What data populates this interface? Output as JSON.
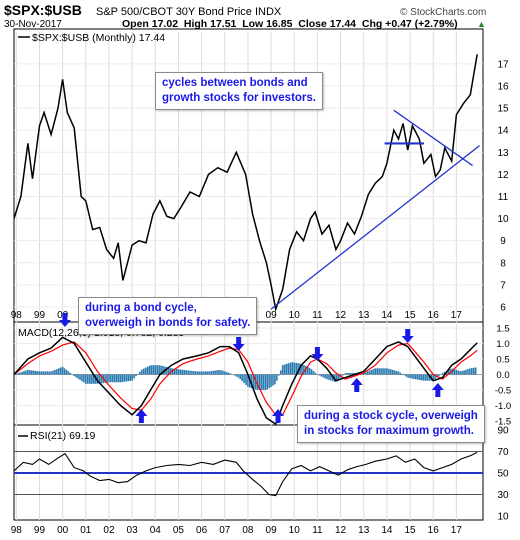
{
  "header": {
    "symbol": "$SPX:$USB",
    "description": "S&P 500/CBOT 30Y Bond Price INDX",
    "date": "30-Nov-2017",
    "ohlc": "Open 17.02  High 17.51  Low 16.85  Close 17.44  Chg +0.47 (+2.79%)",
    "watermark": "© StockCharts.com",
    "change_arrow": "▲"
  },
  "chart_data": [
    {
      "type": "line",
      "title": "$SPX:$USB (Monthly) 17.44",
      "x_ticks": [
        "98",
        "99",
        "00",
        "01",
        "02",
        "03",
        "04",
        "05",
        "06",
        "07",
        "08",
        "09",
        "10",
        "11",
        "12",
        "13",
        "14",
        "15",
        "16",
        "17"
      ],
      "x_range": [
        1997.9,
        2018.15
      ],
      "ylim": [
        5.5,
        17.9
      ],
      "y_ticks": [
        6,
        7,
        8,
        9,
        10,
        11,
        12,
        13,
        14,
        15,
        16,
        17
      ],
      "series": [
        {
          "x": [
            1997.9,
            1998.2,
            1998.5,
            1998.7,
            1999.0,
            1999.2,
            1999.5,
            1999.8,
            2000.0,
            2000.2,
            2000.5,
            2000.8,
            2001.0,
            2001.3,
            2001.6,
            2001.9,
            2002.2,
            2002.4,
            2002.6,
            2002.8,
            2003.0,
            2003.3,
            2003.6,
            2003.9,
            2004.2,
            2004.5,
            2004.8,
            2005.1,
            2005.5,
            2005.9,
            2006.3,
            2006.7,
            2007.1,
            2007.5,
            2007.9,
            2008.2,
            2008.5,
            2008.8,
            2009.0,
            2009.2,
            2009.5,
            2009.8,
            2010.1,
            2010.4,
            2010.7,
            2010.9,
            2011.2,
            2011.5,
            2011.8,
            2012.0,
            2012.3,
            2012.6,
            2012.9,
            2013.2,
            2013.5,
            2013.8,
            2014.0,
            2014.3,
            2014.5,
            2014.7,
            2014.9,
            2015.1,
            2015.4,
            2015.6,
            2015.9,
            2016.1,
            2016.3,
            2016.5,
            2016.8,
            2017.0,
            2017.3,
            2017.6,
            2017.9
          ],
          "values": [
            10.0,
            11.0,
            13.4,
            11.8,
            14.2,
            14.8,
            13.8,
            15.0,
            16.3,
            14.8,
            14.1,
            11.0,
            10.8,
            9.5,
            9.6,
            8.6,
            8.2,
            8.9,
            7.2,
            8.0,
            8.8,
            9.0,
            8.9,
            10.2,
            10.8,
            10.1,
            10.0,
            10.5,
            11.2,
            11.0,
            12.0,
            12.3,
            12.1,
            13.0,
            12.0,
            10.2,
            9.0,
            8.0,
            7.0,
            5.9,
            6.8,
            8.6,
            9.4,
            9.0,
            10.0,
            10.3,
            9.3,
            9.7,
            8.6,
            9.0,
            9.8,
            9.3,
            10.1,
            11.1,
            11.6,
            11.9,
            12.5,
            14.0,
            13.6,
            14.3,
            13.1,
            14.2,
            13.6,
            12.5,
            12.9,
            11.9,
            12.2,
            13.2,
            12.6,
            14.7,
            15.2,
            15.6,
            17.44
          ]
        }
      ],
      "annotations": [
        {
          "text": "cycles between bonds and\ngrowth stocks for investors."
        },
        {
          "text": "during a bond cycle,\noverweigh in bonds for safety."
        }
      ]
    },
    {
      "type": "line",
      "title": "MACD(12,26,9) 1.018, 0.782, 0.235",
      "ylim": [
        -1.5,
        1.5
      ],
      "y_ticks": [
        -1.5,
        -1.0,
        -0.5,
        0.0,
        0.5,
        1.0,
        1.5
      ],
      "series": [
        {
          "name": "MACD",
          "color": "#000000",
          "x": [
            1997.9,
            1998.5,
            1999.0,
            1999.5,
            2000.0,
            2000.5,
            2001.0,
            2001.5,
            2002.0,
            2002.5,
            2003.0,
            2003.4,
            2003.8,
            2004.2,
            2004.7,
            2005.2,
            2005.8,
            2006.3,
            2006.8,
            2007.2,
            2007.6,
            2008.0,
            2008.4,
            2008.8,
            2009.2,
            2009.5,
            2009.9,
            2010.3,
            2010.7,
            2011.0,
            2011.4,
            2011.8,
            2012.2,
            2012.6,
            2013.0,
            2013.5,
            2014.0,
            2014.5,
            2014.9,
            2015.2,
            2015.6,
            2016.0,
            2016.4,
            2016.8,
            2017.2,
            2017.6,
            2017.9
          ],
          "values": [
            0.0,
            0.5,
            0.7,
            0.85,
            1.2,
            1.0,
            0.4,
            -0.2,
            -0.6,
            -1.0,
            -1.3,
            -1.0,
            -0.5,
            0.0,
            0.3,
            0.5,
            0.6,
            0.7,
            0.9,
            0.9,
            0.7,
            0.0,
            -0.8,
            -1.4,
            -1.6,
            -1.0,
            -0.3,
            0.3,
            0.6,
            0.5,
            0.2,
            -0.2,
            -0.1,
            0.0,
            0.1,
            0.5,
            0.9,
            1.05,
            0.9,
            0.6,
            0.2,
            -0.2,
            -0.1,
            0.3,
            0.5,
            0.8,
            1.018
          ]
        },
        {
          "name": "Signal",
          "color": "#ff0000",
          "x": [
            1997.9,
            1998.5,
            1999.0,
            1999.5,
            2000.0,
            2000.5,
            2001.0,
            2001.5,
            2002.0,
            2002.5,
            2003.0,
            2003.4,
            2003.8,
            2004.2,
            2004.7,
            2005.2,
            2005.8,
            2006.3,
            2006.8,
            2007.2,
            2007.6,
            2008.0,
            2008.4,
            2008.8,
            2009.2,
            2009.5,
            2009.9,
            2010.3,
            2010.7,
            2011.0,
            2011.4,
            2011.8,
            2012.2,
            2012.6,
            2013.0,
            2013.5,
            2014.0,
            2014.5,
            2014.9,
            2015.2,
            2015.6,
            2016.0,
            2016.4,
            2016.8,
            2017.2,
            2017.6,
            2017.9
          ],
          "values": [
            0.0,
            0.35,
            0.6,
            0.75,
            0.95,
            1.05,
            0.7,
            0.1,
            -0.35,
            -0.75,
            -1.1,
            -1.15,
            -0.8,
            -0.3,
            0.1,
            0.35,
            0.5,
            0.6,
            0.75,
            0.85,
            0.8,
            0.4,
            -0.3,
            -0.9,
            -1.3,
            -1.3,
            -0.7,
            -0.05,
            0.4,
            0.5,
            0.35,
            0.05,
            -0.15,
            -0.05,
            0.05,
            0.3,
            0.7,
            0.95,
            1.0,
            0.75,
            0.4,
            0.0,
            -0.15,
            0.1,
            0.4,
            0.6,
            0.782
          ]
        },
        {
          "name": "Histogram",
          "color": "#2a7ab0",
          "type": "bar",
          "x": [
            1997.9,
            1998.5,
            1999.0,
            1999.5,
            2000.0,
            2000.5,
            2001.0,
            2001.5,
            2002.0,
            2002.5,
            2003.0,
            2003.4,
            2003.8,
            2004.2,
            2004.7,
            2005.2,
            2005.8,
            2006.3,
            2006.8,
            2007.2,
            2007.6,
            2008.0,
            2008.4,
            2008.8,
            2009.2,
            2009.5,
            2009.9,
            2010.3,
            2010.7,
            2011.0,
            2011.4,
            2011.8,
            2012.2,
            2012.6,
            2013.0,
            2013.5,
            2014.0,
            2014.5,
            2014.9,
            2015.2,
            2015.6,
            2016.0,
            2016.4,
            2016.8,
            2017.2,
            2017.6,
            2017.9
          ],
          "values": [
            0.0,
            0.15,
            0.1,
            0.1,
            0.25,
            -0.05,
            -0.3,
            -0.3,
            -0.25,
            -0.25,
            -0.2,
            0.15,
            0.3,
            0.3,
            0.2,
            0.15,
            0.1,
            0.1,
            0.15,
            0.05,
            -0.1,
            -0.4,
            -0.5,
            -0.5,
            -0.3,
            0.3,
            0.4,
            0.35,
            0.2,
            0.0,
            -0.15,
            -0.25,
            0.05,
            0.05,
            0.05,
            0.2,
            0.2,
            0.1,
            -0.1,
            -0.15,
            -0.2,
            -0.2,
            0.05,
            0.2,
            0.1,
            0.2,
            0.235
          ]
        }
      ],
      "annotations": [
        {
          "text": "during a stock cycle, overweigh\nin stocks for maximum growth."
        }
      ]
    },
    {
      "type": "line",
      "title": "RSI(21) 69.19",
      "ylim": [
        10,
        90
      ],
      "y_ticks": [
        10,
        30,
        50,
        70,
        90
      ],
      "reference_lines": [
        30,
        50,
        70
      ],
      "series": [
        {
          "name": "RSI",
          "x": [
            1997.9,
            1998.3,
            1998.7,
            1999.0,
            1999.4,
            1999.8,
            2000.1,
            2000.5,
            2000.9,
            2001.2,
            2001.6,
            2002.0,
            2002.4,
            2002.8,
            2003.2,
            2003.6,
            2004.0,
            2004.5,
            2005.0,
            2005.5,
            2006.0,
            2006.5,
            2007.0,
            2007.5,
            2007.8,
            2008.2,
            2008.6,
            2008.9,
            2009.2,
            2009.5,
            2009.9,
            2010.3,
            2010.7,
            2011.1,
            2011.5,
            2011.9,
            2012.3,
            2012.7,
            2013.1,
            2013.5,
            2014.0,
            2014.4,
            2014.8,
            2015.2,
            2015.6,
            2016.0,
            2016.4,
            2016.8,
            2017.2,
            2017.6,
            2017.9
          ],
          "values": [
            52,
            60,
            58,
            63,
            58,
            64,
            68,
            55,
            52,
            47,
            43,
            44,
            41,
            42,
            48,
            52,
            55,
            57,
            58,
            57,
            60,
            58,
            62,
            60,
            52,
            44,
            37,
            30,
            29,
            42,
            54,
            57,
            52,
            56,
            52,
            48,
            53,
            56,
            58,
            61,
            63,
            66,
            60,
            63,
            55,
            52,
            55,
            58,
            63,
            66,
            69.19
          ]
        }
      ]
    }
  ],
  "arrow_color": "#1a1ae6",
  "trend_color": "#2233cc"
}
